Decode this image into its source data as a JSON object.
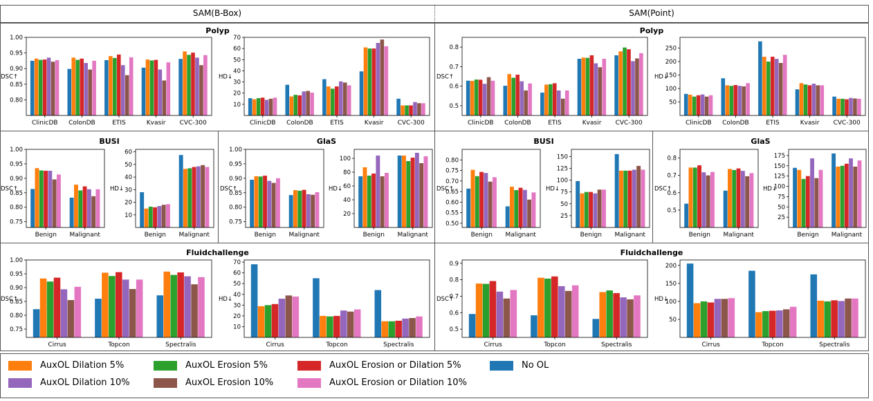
{
  "headers": {
    "left": "SAM(B-Box)",
    "right": "SAM(Point)"
  },
  "colors": {
    "No OL": "#1f77b4",
    "AuxOL Dilation 5%": "#ff7f0e",
    "AuxOL Erosion 5%": "#2ca02c",
    "AuxOL Erosion or Dilation 5%": "#d62728",
    "AuxOL Dilation 10%": "#9467bd",
    "AuxOL Erosion 10%": "#8c564b",
    "AuxOL Erosion or Dilation 10%": "#e377c2"
  },
  "legend": [
    "AuxOL Dilation 5%",
    "AuxOL Erosion 5%",
    "AuxOL Erosion or Dilation 5%",
    "No OL",
    "AuxOL Dilation 10%",
    "AuxOL Erosion 10%",
    "AuxOL Erosion or Dilation 10%"
  ],
  "group_titles": {
    "bbox_polyp": "Polyp",
    "point_polyp": "Polyp",
    "bbox_busi": "BUSI",
    "bbox_glas": "GlaS",
    "point_busi": "BUSI",
    "point_glas": "GlaS",
    "bbox_fluid": "Fluidchallenge",
    "point_fluid": "Fluidchallenge"
  },
  "series_order": [
    "No OL",
    "AuxOL Dilation 5%",
    "AuxOL Erosion 5%",
    "AuxOL Erosion or Dilation 5%",
    "AuxOL Dilation 10%",
    "AuxOL Erosion 10%",
    "AuxOL Erosion or Dilation 10%"
  ],
  "chart_data": [
    {
      "id": "bb_polyp_dsc",
      "type": "bar",
      "ylabel": "DSC↑",
      "ylim": [
        0.75,
        1.0
      ],
      "yticks": [
        0.8,
        0.85,
        0.9,
        0.95,
        1.0
      ],
      "categories": [
        "ClinicDB",
        "ColonDB",
        "ETIS",
        "Kvasir",
        "CVC-300"
      ],
      "values": [
        [
          0.925,
          0.932,
          0.928,
          0.929,
          0.935,
          0.922,
          0.927
        ],
        [
          0.899,
          0.935,
          0.928,
          0.932,
          0.918,
          0.897,
          0.925
        ],
        [
          0.927,
          0.94,
          0.934,
          0.945,
          0.911,
          0.879,
          0.936
        ],
        [
          0.903,
          0.929,
          0.926,
          0.928,
          0.897,
          0.862,
          0.92
        ],
        [
          0.931,
          0.955,
          0.944,
          0.951,
          0.935,
          0.911,
          0.943
        ]
      ]
    },
    {
      "id": "bb_polyp_hd",
      "type": "bar",
      "ylabel": "HD↓",
      "ylim": [
        0,
        70
      ],
      "yticks": [
        10,
        20,
        30,
        40,
        50,
        60,
        70
      ],
      "categories": [
        "ClinicDB",
        "ColonDB",
        "ETIS",
        "Kvasir",
        "CVC-300"
      ],
      "values": [
        [
          15.5,
          14.5,
          15.5,
          16,
          14,
          15,
          16
        ],
        [
          27.5,
          17,
          18.5,
          18,
          21.5,
          22,
          20.5
        ],
        [
          32.5,
          26,
          24,
          26,
          30.5,
          29.5,
          27
        ],
        [
          39.5,
          61,
          60,
          60,
          65,
          68,
          62
        ],
        [
          15,
          9,
          9,
          9,
          12,
          11,
          11
        ]
      ]
    },
    {
      "id": "pt_polyp_dsc",
      "type": "bar",
      "ylabel": "DSC↑",
      "ylim": [
        0.45,
        0.85
      ],
      "yticks": [
        0.5,
        0.6,
        0.7,
        0.8
      ],
      "categories": [
        "ClinicDB",
        "ColonDB",
        "ETIS",
        "Kvasir",
        "CVC-300"
      ],
      "values": [
        [
          0.628,
          0.627,
          0.634,
          0.633,
          0.612,
          0.646,
          0.628
        ],
        [
          0.602,
          0.662,
          0.643,
          0.659,
          0.625,
          0.578,
          0.614
        ],
        [
          0.567,
          0.608,
          0.61,
          0.615,
          0.578,
          0.536,
          0.578
        ],
        [
          0.74,
          0.746,
          0.745,
          0.758,
          0.717,
          0.697,
          0.74
        ],
        [
          0.758,
          0.778,
          0.798,
          0.789,
          0.728,
          0.742,
          0.769
        ]
      ]
    },
    {
      "id": "pt_polyp_hd",
      "type": "bar",
      "ylabel": "HD↓",
      "ylim": [
        0,
        290
      ],
      "yticks": [
        50,
        100,
        150,
        200,
        250
      ],
      "categories": [
        "ClinicDB",
        "ColonDB",
        "ETIS",
        "Kvasir",
        "CVC-300"
      ],
      "values": [
        [
          80,
          77,
          70,
          75,
          78,
          70,
          75
        ],
        [
          138,
          112,
          110,
          113,
          110,
          108,
          120
        ],
        [
          275,
          218,
          200,
          218,
          210,
          195,
          225
        ],
        [
          97,
          120,
          115,
          112,
          118,
          112,
          112
        ],
        [
          70,
          62,
          62,
          60,
          65,
          63,
          62
        ]
      ]
    },
    {
      "id": "bb_busi_dsc",
      "type": "bar",
      "ylabel": "DSC↑",
      "ylim": [
        0.73,
        1.0
      ],
      "yticks": [
        0.75,
        0.8,
        0.85,
        0.9,
        0.95,
        1.0
      ],
      "categories": [
        "Benign",
        "Malignant"
      ],
      "values": [
        [
          0.863,
          0.935,
          0.927,
          0.926,
          0.926,
          0.896,
          0.913
        ],
        [
          0.833,
          0.878,
          0.858,
          0.872,
          0.862,
          0.838,
          0.862
        ]
      ]
    },
    {
      "id": "bb_busi_hd",
      "type": "bar",
      "ylabel": "HD↓",
      "ylim": [
        0,
        62
      ],
      "yticks": [
        10,
        20,
        30,
        40,
        50,
        60
      ],
      "categories": [
        "Benign",
        "Malignant"
      ],
      "values": [
        [
          28,
          15,
          16.5,
          16,
          17,
          18,
          18.5
        ],
        [
          57.5,
          46.5,
          47,
          48,
          48.5,
          49.5,
          48
        ]
      ]
    },
    {
      "id": "bb_glas_dsc",
      "type": "bar",
      "ylabel": "DSC↑",
      "ylim": [
        0.73,
        1.0
      ],
      "yticks": [
        0.75,
        0.8,
        0.85,
        0.9,
        0.95,
        1.0
      ],
      "categories": [
        "Benign",
        "Malignant"
      ],
      "values": [
        [
          0.895,
          0.907,
          0.906,
          0.909,
          0.891,
          0.884,
          0.9
        ],
        [
          0.842,
          0.859,
          0.857,
          0.86,
          0.845,
          0.843,
          0.852
        ]
      ]
    },
    {
      "id": "bb_glas_hd",
      "type": "bar",
      "ylabel": "HD↓",
      "ylim": [
        0,
        113
      ],
      "yticks": [
        20,
        40,
        60,
        80,
        100
      ],
      "categories": [
        "Benign",
        "Malignant"
      ],
      "values": [
        [
          74,
          87,
          75,
          78,
          104,
          74,
          79
        ],
        [
          104,
          104,
          96,
          101,
          108,
          93,
          103
        ]
      ]
    },
    {
      "id": "pt_busi_dsc",
      "type": "bar",
      "ylabel": "DSC↑",
      "ylim": [
        0.48,
        0.85
      ],
      "yticks": [
        0.5,
        0.55,
        0.6,
        0.65,
        0.7,
        0.75,
        0.8
      ],
      "categories": [
        "Benign",
        "Malignant"
      ],
      "values": [
        [
          0.664,
          0.753,
          0.723,
          0.743,
          0.738,
          0.697,
          0.718
        ],
        [
          0.58,
          0.673,
          0.657,
          0.668,
          0.658,
          0.612,
          0.646
        ]
      ]
    },
    {
      "id": "pt_busi_hd",
      "type": "bar",
      "ylabel": "HD↓",
      "ylim": [
        0,
        165
      ],
      "yticks": [
        25,
        50,
        75,
        100,
        125,
        150
      ],
      "categories": [
        "Benign",
        "Malignant"
      ],
      "values": [
        [
          98,
          72,
          75,
          75,
          72,
          80,
          80
        ],
        [
          155,
          120,
          120,
          120,
          122,
          130,
          122
        ]
      ]
    },
    {
      "id": "pt_glas_dsc",
      "type": "bar",
      "ylabel": "DSC↑",
      "ylim": [
        0.4,
        0.85
      ],
      "yticks": [
        0.5,
        0.6,
        0.7,
        0.8
      ],
      "categories": [
        "Benign",
        "Malignant"
      ],
      "values": [
        [
          0.537,
          0.745,
          0.745,
          0.758,
          0.718,
          0.7,
          0.72
        ],
        [
          0.612,
          0.737,
          0.731,
          0.74,
          0.726,
          0.695,
          0.713
        ]
      ]
    },
    {
      "id": "pt_glas_hd",
      "type": "bar",
      "ylabel": "HD↓",
      "ylim": [
        0,
        190
      ],
      "yticks": [
        25,
        50,
        75,
        100,
        125,
        150,
        175
      ],
      "categories": [
        "Benign",
        "Malignant"
      ],
      "values": [
        [
          145,
          140,
          118,
          125,
          168,
          120,
          140
        ],
        [
          180,
          148,
          150,
          155,
          168,
          148,
          163
        ]
      ]
    },
    {
      "id": "bb_fluid_dsc",
      "type": "bar",
      "ylabel": "DSC↑",
      "ylim": [
        0.72,
        1.0
      ],
      "yticks": [
        0.75,
        0.8,
        0.85,
        0.9,
        0.95,
        1.0
      ],
      "categories": [
        "Cirrus",
        "Topcon",
        "Spectralis"
      ],
      "values": [
        [
          0.822,
          0.933,
          0.922,
          0.936,
          0.894,
          0.855,
          0.903
        ],
        [
          0.86,
          0.954,
          0.942,
          0.956,
          0.929,
          0.895,
          0.929
        ],
        [
          0.872,
          0.958,
          0.946,
          0.955,
          0.941,
          0.912,
          0.938
        ]
      ]
    },
    {
      "id": "bb_fluid_hd",
      "type": "bar",
      "ylabel": "HD↓",
      "ylim": [
        0,
        72
      ],
      "yticks": [
        10,
        20,
        30,
        40,
        50,
        60,
        70
      ],
      "categories": [
        "Cirrus",
        "Topcon",
        "Spectralis"
      ],
      "values": [
        [
          68,
          29,
          30,
          31,
          36,
          39,
          38
        ],
        [
          55,
          20,
          19.5,
          20,
          25,
          24,
          26
        ],
        [
          44,
          15,
          15,
          15.5,
          17.5,
          18,
          19.5
        ]
      ]
    },
    {
      "id": "pt_fluid_dsc",
      "type": "bar",
      "ylabel": "DSC↑",
      "ylim": [
        0.45,
        0.92
      ],
      "yticks": [
        0.5,
        0.6,
        0.7,
        0.8,
        0.9
      ],
      "categories": [
        "Cirrus",
        "Topcon",
        "Spectralis"
      ],
      "values": [
        [
          0.592,
          0.777,
          0.775,
          0.792,
          0.728,
          0.686,
          0.738
        ],
        [
          0.584,
          0.812,
          0.807,
          0.82,
          0.761,
          0.732,
          0.766
        ],
        [
          0.562,
          0.725,
          0.735,
          0.719,
          0.693,
          0.681,
          0.705
        ]
      ]
    },
    {
      "id": "pt_fluid_hd",
      "type": "bar",
      "ylabel": "HD↓",
      "ylim": [
        0,
        215
      ],
      "yticks": [
        50,
        100,
        150,
        200
      ],
      "categories": [
        "Cirrus",
        "Topcon",
        "Spectralis"
      ],
      "values": [
        [
          205,
          95,
          100,
          97,
          107,
          107,
          109
        ],
        [
          185,
          70,
          73,
          74,
          75,
          78,
          85
        ],
        [
          175,
          102,
          100,
          103,
          101,
          108,
          108
        ]
      ]
    }
  ]
}
